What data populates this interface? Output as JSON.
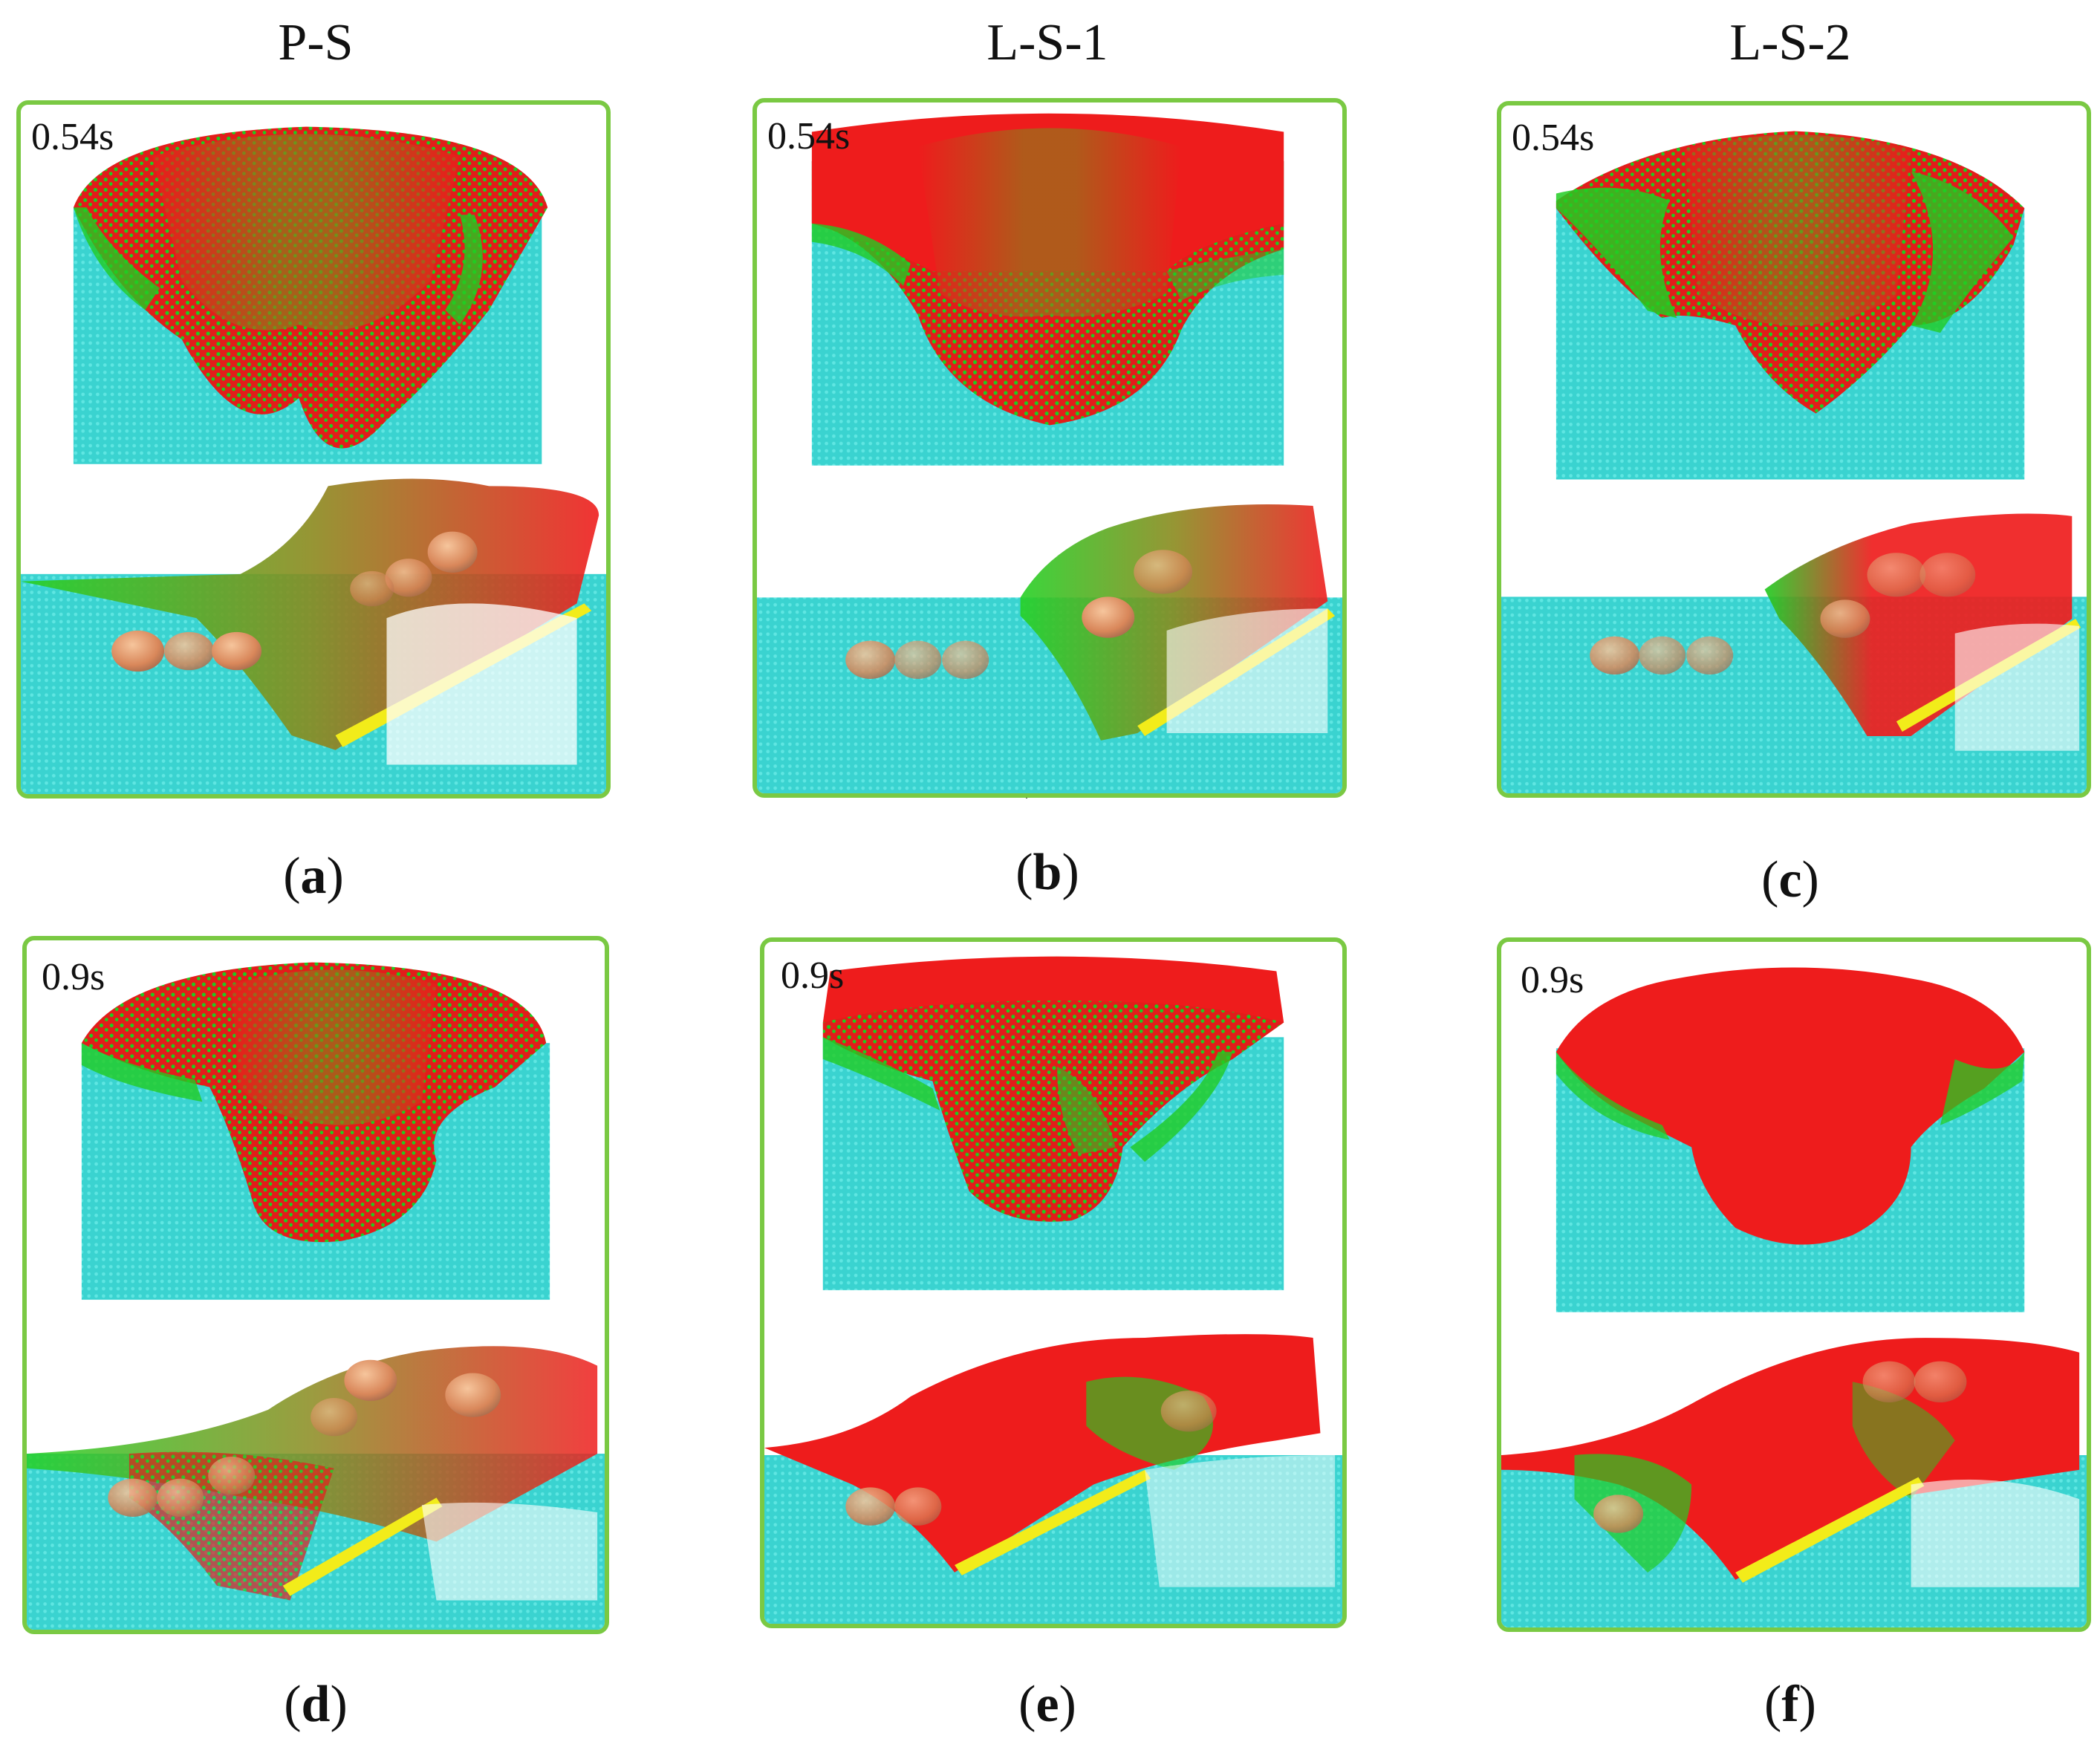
{
  "column_titles": [
    "P-S",
    "L-S-1",
    "L-S-2"
  ],
  "panels": [
    {
      "caption": "a",
      "time": "0.54s"
    },
    {
      "caption": "b",
      "time": "0.54s"
    },
    {
      "caption": "c",
      "time": "0.54s"
    },
    {
      "caption": "d",
      "time": "0.9s"
    },
    {
      "caption": "e",
      "time": "0.9s"
    },
    {
      "caption": "f",
      "time": "0.9s"
    }
  ],
  "colors": {
    "panel_border": "#7ac943",
    "soil": "#3ad3d0",
    "slide_red": "#ee1c1c",
    "slide_green": "#22cc22",
    "slope_plate": "#f2ec1a",
    "blocks": "#e2956a"
  }
}
